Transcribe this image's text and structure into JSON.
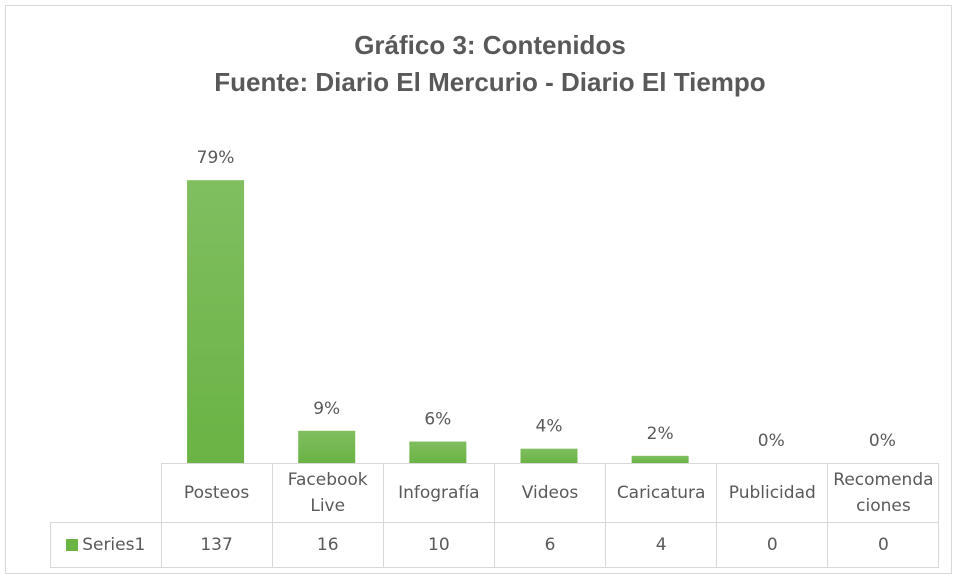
{
  "chart_data": {
    "type": "bar",
    "title": "Gráfico 3: Contenidos",
    "subtitle": "Fuente: Diario El Mercurio - Diario El Tiempo",
    "categories": [
      "Posteos",
      "Facebook Live",
      "Infografía",
      "Videos",
      "Caricatura",
      "Publicidad",
      "Recomendaciones"
    ],
    "series": [
      {
        "name": "Series1",
        "color": "#6ab344",
        "values": [
          79,
          9,
          6,
          4,
          2,
          0,
          0
        ],
        "value_labels": [
          "79%",
          "9%",
          "6%",
          "4%",
          "2%",
          "0%",
          "0%"
        ],
        "table_values": [
          137,
          16,
          10,
          6,
          4,
          0,
          0
        ]
      }
    ]
  }
}
